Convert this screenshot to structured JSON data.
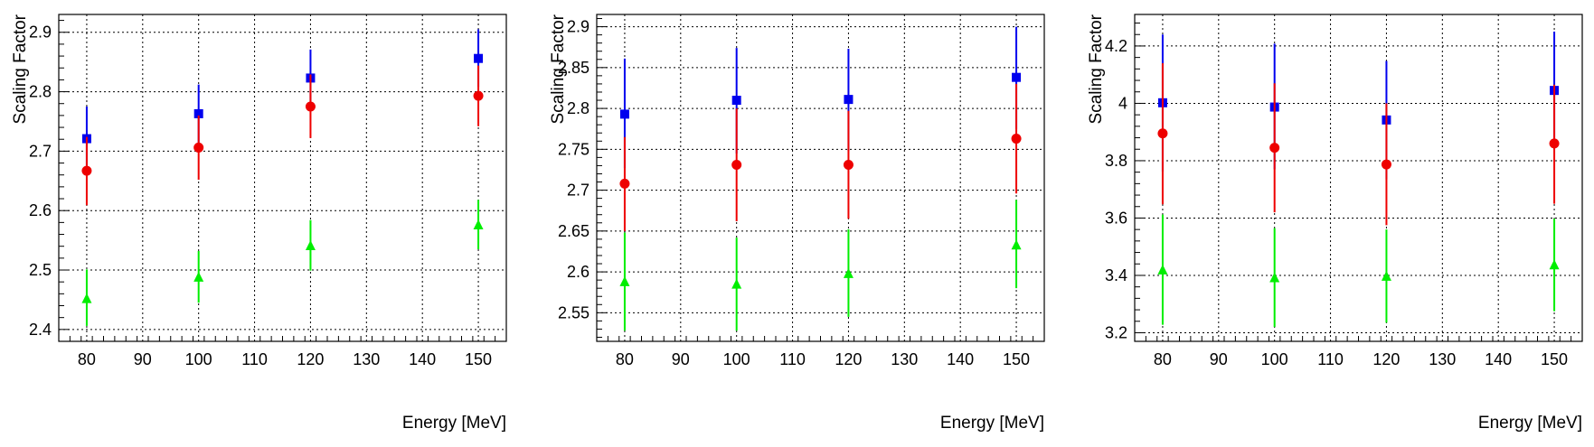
{
  "chart_data": [
    {
      "type": "scatter",
      "xlabel": "Energy [MeV]",
      "ylabel": "Scaling Factor",
      "xlim": [
        75,
        155
      ],
      "ylim": [
        2.38,
        2.93
      ],
      "xticks": [
        80,
        90,
        100,
        110,
        120,
        130,
        140,
        150
      ],
      "xtick_labels": [
        "80",
        "90",
        "100",
        "110",
        "120",
        "130",
        "140",
        "150"
      ],
      "yticks": [
        2.4,
        2.5,
        2.6,
        2.7,
        2.8,
        2.9
      ],
      "ytick_labels": [
        "2.4",
        "2.5",
        "2.6",
        "2.7",
        "2.8",
        "2.9"
      ],
      "grid": true,
      "series": [
        {
          "marker": "square",
          "color": "#0000ee",
          "points": [
            {
              "x": 80,
              "y": 2.721,
              "ylo": 2.667,
              "yhi": 2.775
            },
            {
              "x": 100,
              "y": 2.763,
              "ylo": 2.714,
              "yhi": 2.812
            },
            {
              "x": 120,
              "y": 2.823,
              "ylo": 2.776,
              "yhi": 2.871
            },
            {
              "x": 150,
              "y": 2.856,
              "ylo": 2.808,
              "yhi": 2.905
            }
          ]
        },
        {
          "marker": "circle",
          "color": "#ee0000",
          "points": [
            {
              "x": 80,
              "y": 2.667,
              "ylo": 2.609,
              "yhi": 2.724
            },
            {
              "x": 100,
              "y": 2.706,
              "ylo": 2.652,
              "yhi": 2.76
            },
            {
              "x": 120,
              "y": 2.775,
              "ylo": 2.722,
              "yhi": 2.829
            },
            {
              "x": 150,
              "y": 2.793,
              "ylo": 2.742,
              "yhi": 2.844
            }
          ]
        },
        {
          "marker": "triangle",
          "color": "#00ee00",
          "points": [
            {
              "x": 80,
              "y": 2.452,
              "ylo": 2.406,
              "yhi": 2.501
            },
            {
              "x": 100,
              "y": 2.488,
              "ylo": 2.445,
              "yhi": 2.532
            },
            {
              "x": 120,
              "y": 2.541,
              "ylo": 2.499,
              "yhi": 2.584
            },
            {
              "x": 150,
              "y": 2.576,
              "ylo": 2.535,
              "yhi": 2.618
            }
          ]
        }
      ]
    },
    {
      "type": "scatter",
      "xlabel": "Energy [MeV]",
      "ylabel": "Scaling Factor",
      "xlim": [
        75,
        155
      ],
      "ylim": [
        2.515,
        2.915
      ],
      "xticks": [
        80,
        90,
        100,
        110,
        120,
        130,
        140,
        150
      ],
      "xtick_labels": [
        "80",
        "90",
        "100",
        "110",
        "120",
        "130",
        "140",
        "150"
      ],
      "yticks": [
        2.55,
        2.6,
        2.65,
        2.7,
        2.75,
        2.8,
        2.85,
        2.9
      ],
      "ytick_labels": [
        "2.55",
        "2.6",
        "2.65",
        "2.7",
        "2.75",
        "2.8",
        "2.85",
        "2.9"
      ],
      "grid": true,
      "series": [
        {
          "marker": "square",
          "color": "#0000ee",
          "points": [
            {
              "x": 80,
              "y": 2.793,
              "ylo": 2.727,
              "yhi": 2.861
            },
            {
              "x": 100,
              "y": 2.81,
              "ylo": 2.745,
              "yhi": 2.874
            },
            {
              "x": 120,
              "y": 2.811,
              "ylo": 2.748,
              "yhi": 2.873
            },
            {
              "x": 150,
              "y": 2.838,
              "ylo": 2.775,
              "yhi": 2.9
            }
          ]
        },
        {
          "marker": "circle",
          "color": "#ee0000",
          "points": [
            {
              "x": 80,
              "y": 2.708,
              "ylo": 2.65,
              "yhi": 2.765
            },
            {
              "x": 100,
              "y": 2.731,
              "ylo": 2.662,
              "yhi": 2.8
            },
            {
              "x": 120,
              "y": 2.731,
              "ylo": 2.665,
              "yhi": 2.797
            },
            {
              "x": 150,
              "y": 2.763,
              "ylo": 2.696,
              "yhi": 2.83
            }
          ]
        },
        {
          "marker": "triangle",
          "color": "#00ee00",
          "points": [
            {
              "x": 80,
              "y": 2.588,
              "ylo": 2.528,
              "yhi": 2.648
            },
            {
              "x": 100,
              "y": 2.585,
              "ylo": 2.528,
              "yhi": 2.642
            },
            {
              "x": 120,
              "y": 2.598,
              "ylo": 2.545,
              "yhi": 2.652
            },
            {
              "x": 150,
              "y": 2.633,
              "ylo": 2.58,
              "yhi": 2.688
            }
          ]
        }
      ]
    },
    {
      "type": "scatter",
      "xlabel": "Energy [MeV]",
      "ylabel": "Scaling Factor",
      "xlim": [
        75,
        155
      ],
      "ylim": [
        3.17,
        4.31
      ],
      "xticks": [
        80,
        90,
        100,
        110,
        120,
        130,
        140,
        150
      ],
      "xtick_labels": [
        "80",
        "90",
        "100",
        "110",
        "120",
        "130",
        "140",
        "150"
      ],
      "yticks": [
        3.2,
        3.4,
        3.6,
        3.8,
        4.0,
        4.2
      ],
      "ytick_labels": [
        "3.2",
        "3.4",
        "3.6",
        "3.8",
        "4",
        "4.2"
      ],
      "grid": true,
      "series": [
        {
          "marker": "square",
          "color": "#0000ee",
          "points": [
            {
              "x": 80,
              "y": 4.002,
              "ylo": 3.762,
              "yhi": 4.24
            },
            {
              "x": 100,
              "y": 3.987,
              "ylo": 3.77,
              "yhi": 4.208
            },
            {
              "x": 120,
              "y": 3.942,
              "ylo": 3.735,
              "yhi": 4.148
            },
            {
              "x": 150,
              "y": 4.045,
              "ylo": 3.84,
              "yhi": 4.25
            }
          ]
        },
        {
          "marker": "circle",
          "color": "#ee0000",
          "points": [
            {
              "x": 80,
              "y": 3.895,
              "ylo": 3.648,
              "yhi": 4.14
            },
            {
              "x": 100,
              "y": 3.845,
              "ylo": 3.62,
              "yhi": 4.07
            },
            {
              "x": 120,
              "y": 3.787,
              "ylo": 3.575,
              "yhi": 4.0
            },
            {
              "x": 150,
              "y": 3.86,
              "ylo": 3.65,
              "yhi": 4.065
            }
          ]
        },
        {
          "marker": "triangle",
          "color": "#00ee00",
          "points": [
            {
              "x": 80,
              "y": 3.419,
              "ylo": 3.228,
              "yhi": 3.612
            },
            {
              "x": 100,
              "y": 3.392,
              "ylo": 3.22,
              "yhi": 3.565
            },
            {
              "x": 120,
              "y": 3.397,
              "ylo": 3.235,
              "yhi": 3.56
            },
            {
              "x": 150,
              "y": 3.437,
              "ylo": 3.275,
              "yhi": 3.598
            }
          ]
        }
      ]
    }
  ]
}
